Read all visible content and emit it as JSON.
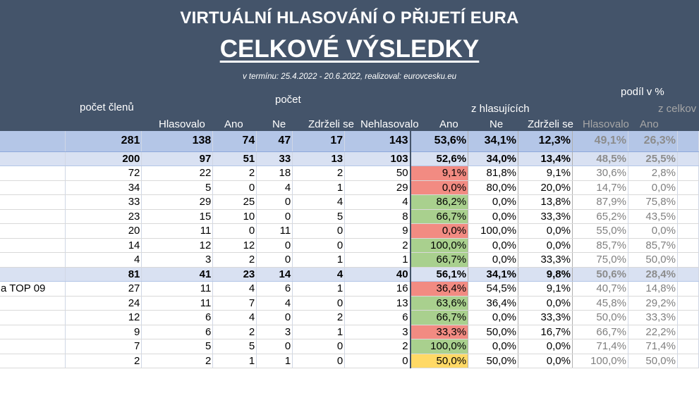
{
  "header": {
    "title": "VIRTUÁLNÍ HLASOVÁNÍ O PŘIJETÍ EURA",
    "subtitle": "CELKOVÉ VÝSLEDKY",
    "period": "v termínu: 25.4.2022 - 20.6.2022, realizoval: eurovcesku.eu",
    "pocet_clenu": "počet členů",
    "pocet": "počet",
    "podil": "podíl v %",
    "z_hlasujicich": "z hlasujících",
    "z_celkove": "z celkov"
  },
  "columns": [
    "Hlasovalo",
    "Ano",
    "Ne",
    "Zdrželi se",
    "Nehlasovalo",
    "Ano",
    "Ne",
    "Zdrželi se",
    "Hlasovalo",
    "Ano"
  ],
  "rows": [
    {
      "type": "total",
      "name": "",
      "members": "281",
      "voted": "138",
      "yes": "74",
      "no": "47",
      "abstain": "17",
      "notvoted": "143",
      "p_yes": "53,6%",
      "p_no": "34,1%",
      "p_abs": "12,3%",
      "t_voted": "49,1%",
      "t_yes": "26,3%",
      "color": ""
    },
    {
      "type": "group",
      "name": "",
      "members": "200",
      "voted": "97",
      "yes": "51",
      "no": "33",
      "abstain": "13",
      "notvoted": "103",
      "p_yes": "52,6%",
      "p_no": "34,0%",
      "p_abs": "13,4%",
      "t_voted": "48,5%",
      "t_yes": "25,5%",
      "color": ""
    },
    {
      "type": "row",
      "name": "",
      "members": "72",
      "voted": "22",
      "yes": "2",
      "no": "18",
      "abstain": "2",
      "notvoted": "50",
      "p_yes": "9,1%",
      "p_no": "81,8%",
      "p_abs": "9,1%",
      "t_voted": "30,6%",
      "t_yes": "2,8%",
      "color": "red"
    },
    {
      "type": "row",
      "name": "",
      "members": "34",
      "voted": "5",
      "yes": "0",
      "no": "4",
      "abstain": "1",
      "notvoted": "29",
      "p_yes": "0,0%",
      "p_no": "80,0%",
      "p_abs": "20,0%",
      "t_voted": "14,7%",
      "t_yes": "0,0%",
      "color": "red"
    },
    {
      "type": "row",
      "name": "",
      "members": "33",
      "voted": "29",
      "yes": "25",
      "no": "0",
      "abstain": "4",
      "notvoted": "4",
      "p_yes": "86,2%",
      "p_no": "0,0%",
      "p_abs": "13,8%",
      "t_voted": "87,9%",
      "t_yes": "75,8%",
      "color": "green"
    },
    {
      "type": "row",
      "name": "",
      "members": "23",
      "voted": "15",
      "yes": "10",
      "no": "0",
      "abstain": "5",
      "notvoted": "8",
      "p_yes": "66,7%",
      "p_no": "0,0%",
      "p_abs": "33,3%",
      "t_voted": "65,2%",
      "t_yes": "43,5%",
      "color": "green"
    },
    {
      "type": "row",
      "name": "",
      "members": "20",
      "voted": "11",
      "yes": "0",
      "no": "11",
      "abstain": "0",
      "notvoted": "9",
      "p_yes": "0,0%",
      "p_no": "100,0%",
      "p_abs": "0,0%",
      "t_voted": "55,0%",
      "t_yes": "0,0%",
      "color": "red"
    },
    {
      "type": "row",
      "name": "",
      "members": "14",
      "voted": "12",
      "yes": "12",
      "no": "0",
      "abstain": "0",
      "notvoted": "2",
      "p_yes": "100,0%",
      "p_no": "0,0%",
      "p_abs": "0,0%",
      "t_voted": "85,7%",
      "t_yes": "85,7%",
      "color": "green"
    },
    {
      "type": "row",
      "name": "",
      "members": "4",
      "voted": "3",
      "yes": "2",
      "no": "0",
      "abstain": "1",
      "notvoted": "1",
      "p_yes": "66,7%",
      "p_no": "0,0%",
      "p_abs": "33,3%",
      "t_voted": "75,0%",
      "t_yes": "50,0%",
      "color": "green"
    },
    {
      "type": "group",
      "name": "",
      "members": "81",
      "voted": "41",
      "yes": "23",
      "no": "14",
      "abstain": "4",
      "notvoted": "40",
      "p_yes": "56,1%",
      "p_no": "34,1%",
      "p_abs": "9,8%",
      "t_voted": "50,6%",
      "t_yes": "28,4%",
      "color": ""
    },
    {
      "type": "row",
      "name": "a TOP 09",
      "members": "27",
      "voted": "11",
      "yes": "4",
      "no": "6",
      "abstain": "1",
      "notvoted": "16",
      "p_yes": "36,4%",
      "p_no": "54,5%",
      "p_abs": "9,1%",
      "t_voted": "40,7%",
      "t_yes": "14,8%",
      "color": "red"
    },
    {
      "type": "row",
      "name": "",
      "members": "24",
      "voted": "11",
      "yes": "7",
      "no": "4",
      "abstain": "0",
      "notvoted": "13",
      "p_yes": "63,6%",
      "p_no": "36,4%",
      "p_abs": "0,0%",
      "t_voted": "45,8%",
      "t_yes": "29,2%",
      "color": "green"
    },
    {
      "type": "row",
      "name": "",
      "members": "12",
      "voted": "6",
      "yes": "4",
      "no": "0",
      "abstain": "2",
      "notvoted": "6",
      "p_yes": "66,7%",
      "p_no": "0,0%",
      "p_abs": "33,3%",
      "t_voted": "50,0%",
      "t_yes": "33,3%",
      "color": "green"
    },
    {
      "type": "row",
      "name": "",
      "members": "9",
      "voted": "6",
      "yes": "2",
      "no": "3",
      "abstain": "1",
      "notvoted": "3",
      "p_yes": "33,3%",
      "p_no": "50,0%",
      "p_abs": "16,7%",
      "t_voted": "66,7%",
      "t_yes": "22,2%",
      "color": "red"
    },
    {
      "type": "row",
      "name": "",
      "members": "7",
      "voted": "5",
      "yes": "5",
      "no": "0",
      "abstain": "0",
      "notvoted": "2",
      "p_yes": "100,0%",
      "p_no": "0,0%",
      "p_abs": "0,0%",
      "t_voted": "71,4%",
      "t_yes": "71,4%",
      "color": "green"
    },
    {
      "type": "row",
      "name": "",
      "members": "2",
      "voted": "2",
      "yes": "1",
      "no": "1",
      "abstain": "0",
      "notvoted": "0",
      "p_yes": "50,0%",
      "p_no": "50,0%",
      "p_abs": "0,0%",
      "t_voted": "100,0%",
      "t_yes": "50,0%",
      "color": "yellow"
    }
  ]
}
